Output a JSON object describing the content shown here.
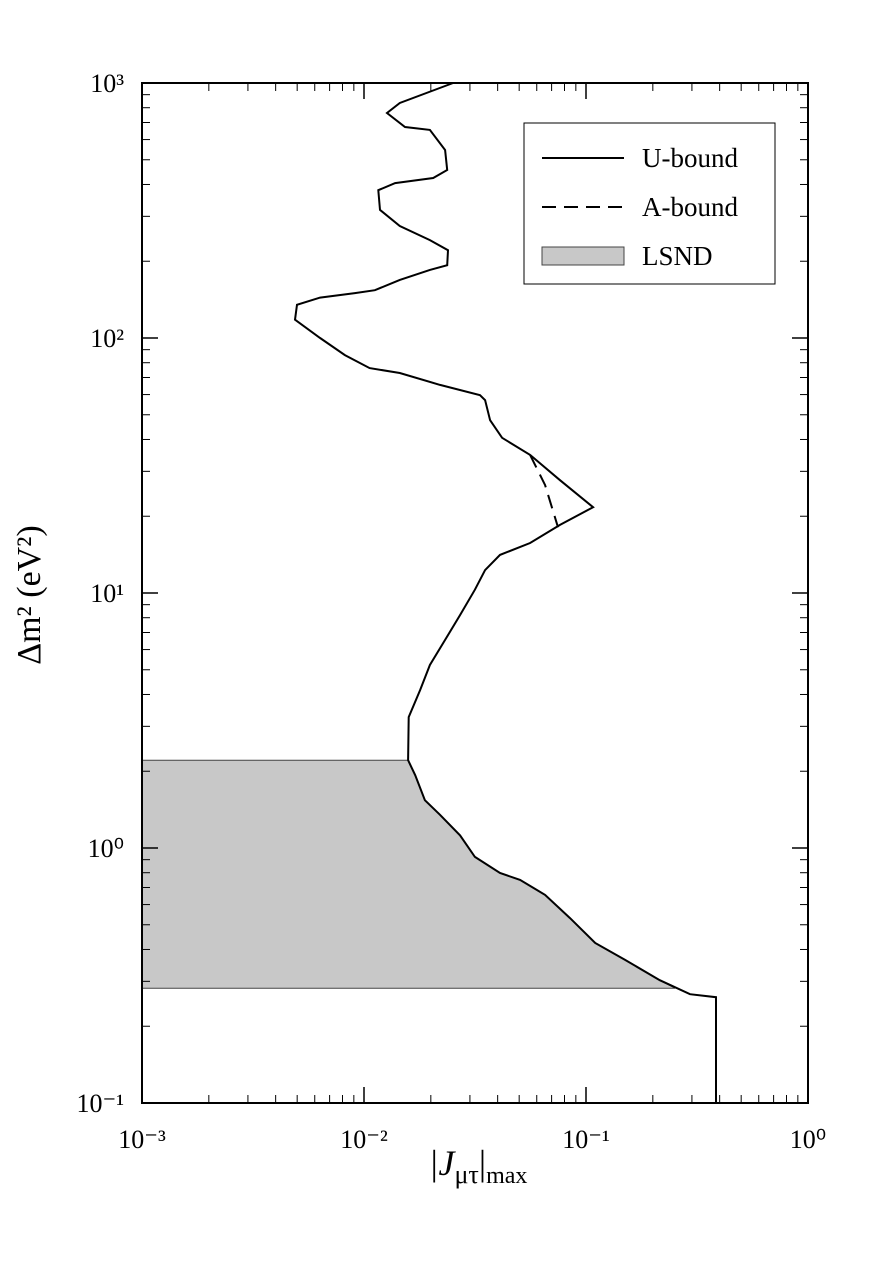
{
  "chart_data": {
    "type": "line",
    "xlabel": [
      "|J",
      "μτ",
      "|",
      "max"
    ],
    "ylabel": "Δm² (eV²)",
    "xscale": "log",
    "yscale": "log",
    "xlim": [
      0.001,
      1
    ],
    "ylim": [
      0.1,
      1000
    ],
    "xticks": [
      {
        "value": 0.001,
        "label": "10⁻³"
      },
      {
        "value": 0.01,
        "label": "10⁻²"
      },
      {
        "value": 0.1,
        "label": "10⁻¹"
      },
      {
        "value": 1,
        "label": "10⁰"
      }
    ],
    "yticks": [
      {
        "value": 0.1,
        "label": "10⁻¹"
      },
      {
        "value": 1,
        "label": "10⁰"
      },
      {
        "value": 10,
        "label": "10¹"
      },
      {
        "value": 100,
        "label": "10²"
      },
      {
        "value": 1000,
        "label": "10³"
      }
    ],
    "minor_ticks": true,
    "legend": "upper right",
    "series": [
      {
        "name": "LSND",
        "style": "fill",
        "color": "#c8c8c8",
        "x": [
          0.001,
          0.0158,
          0.017,
          0.0188,
          0.022,
          0.0271,
          0.0316,
          0.041,
          0.0505,
          0.0654,
          0.0847,
          0.11,
          0.15,
          0.215,
          0.252,
          0.001
        ],
        "y": [
          2.21,
          2.21,
          1.93,
          1.54,
          1.35,
          1.12,
          0.923,
          0.798,
          0.75,
          0.655,
          0.531,
          0.424,
          0.364,
          0.303,
          0.282,
          0.282
        ]
      },
      {
        "name": "U-bound",
        "style": "solid",
        "color": "#000000",
        "x": [
          0.0252,
          0.0145,
          0.0127,
          0.0153,
          0.0198,
          0.0232,
          0.0237,
          0.0205,
          0.0138,
          0.0116,
          0.0118,
          0.0145,
          0.0198,
          0.0239,
          0.0237,
          0.0198,
          0.0145,
          0.0112,
          0.0091,
          0.00634,
          0.00499,
          0.00489,
          0.00634,
          0.0082,
          0.0106,
          0.0145,
          0.022,
          0.0333,
          0.0351,
          0.037,
          0.0419,
          0.056,
          0.0764,
          0.1076,
          0.0764,
          0.056,
          0.041,
          0.0351,
          0.0316,
          0.0271,
          0.0232,
          0.0198,
          0.0179,
          0.0159,
          0.0158,
          0.017,
          0.0188,
          0.022,
          0.0271,
          0.0316,
          0.041,
          0.0505,
          0.0654,
          0.0847,
          0.11,
          0.15,
          0.215,
          0.294,
          0.385,
          0.385
        ],
        "y": [
          1000,
          835,
          763,
          672,
          655,
          546,
          456,
          424,
          405,
          380,
          318,
          275,
          242,
          221,
          193,
          185,
          169,
          154,
          150,
          144,
          135,
          118,
          100,
          85.7,
          76.2,
          72.9,
          65.5,
          59.7,
          57.1,
          47.6,
          40.6,
          34.8,
          27.7,
          21.7,
          18.5,
          15.7,
          14.1,
          12.3,
          10.3,
          8.2,
          6.55,
          5.22,
          4.16,
          3.26,
          2.21,
          1.93,
          1.54,
          1.35,
          1.12,
          0.923,
          0.798,
          0.75,
          0.655,
          0.531,
          0.424,
          0.364,
          0.303,
          0.267,
          0.26,
          0.1
        ]
      },
      {
        "name": "A-bound",
        "style": "dashed",
        "color": "#000000",
        "x": [
          0.056,
          0.0654,
          0.0748
        ],
        "y": [
          34.8,
          26.5,
          18.1
        ]
      }
    ]
  }
}
